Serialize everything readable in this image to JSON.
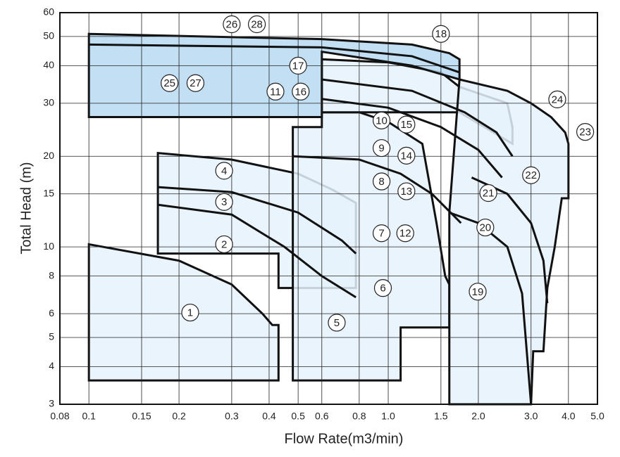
{
  "chart_data": {
    "type": "selection-chart",
    "x_label": "Flow Rate(m3/min)",
    "y_label": "Total Head (m)",
    "log_x": true,
    "log_y": true,
    "grid": true,
    "xlim": [
      0.08,
      5
    ],
    "ylim": [
      3,
      60
    ],
    "xticks": [
      0.08,
      0.1,
      0.15,
      0.2,
      0.3,
      0.4,
      0.5,
      0.6,
      0.8,
      {
        "value": 1,
        "label": "1.0"
      },
      1.5,
      {
        "value": 2,
        "label": "2.0"
      },
      {
        "value": 3,
        "label": "3.0"
      },
      {
        "value": 4,
        "label": "4.0"
      },
      {
        "value": 5,
        "label": "5.0"
      }
    ],
    "yticks": [
      3,
      4,
      5,
      6,
      8,
      10,
      15,
      20,
      30,
      40,
      50,
      60
    ],
    "regions": [
      {
        "color": "#e6f2fb",
        "x": [
          0.1,
          0.1,
          0.2,
          0.3,
          0.38,
          0.41,
          0.43,
          0.43
        ],
        "y": [
          3.6,
          10.2,
          9,
          7.5,
          6,
          5.5,
          5.5,
          3.6
        ]
      },
      {
        "color": "#e6f2fb",
        "x": [
          0.17,
          0.17,
          0.3,
          0.5,
          0.65,
          0.78,
          0.78,
          0.43,
          0.43,
          0.17
        ],
        "y": [
          9.5,
          20.5,
          19.5,
          17.5,
          15.5,
          14,
          7.3,
          7.3,
          9.5,
          9.5
        ]
      },
      {
        "color": "#e6f2fb",
        "x": [
          0.48,
          0.48,
          0.6,
          0.6,
          0.8,
          1,
          1.3,
          1.45,
          1.55,
          1.6,
          1.6,
          1.1,
          1.1
        ],
        "y": [
          3.6,
          25,
          25,
          28,
          28,
          26,
          22,
          12,
          8,
          7.5,
          5.4,
          5.4,
          3.6
        ]
      },
      {
        "color": "#e6f2fb",
        "x": [
          0.6,
          0.6,
          1,
          1.5,
          1.73,
          2.5,
          2.6,
          2.6,
          1.73
        ],
        "y": [
          28,
          42,
          41,
          38,
          34,
          30,
          25,
          22,
          28
        ]
      },
      {
        "color": "#e6f2fb",
        "x": [
          1.6,
          1.6,
          1.73,
          2.5,
          3,
          3.5,
          3.9,
          4,
          4,
          3.8,
          3.6,
          3.4,
          3.3,
          3.05,
          3
        ],
        "y": [
          3,
          13,
          36,
          33,
          30,
          27,
          24,
          22,
          14.5,
          14.5,
          10,
          7.3,
          4.5,
          4.5,
          3
        ]
      },
      {
        "color": "#b9d9f2",
        "x": [
          0.1,
          0.1,
          0.6,
          1.2,
          1.6,
          1.73,
          1.73,
          1.2,
          0.6,
          0.6
        ],
        "y": [
          27,
          51,
          49,
          47,
          44,
          42,
          36,
          40,
          44.5,
          27
        ]
      }
    ],
    "curves": [
      {
        "color": "#111111",
        "x": [
          0.17,
          0.3,
          0.5,
          0.7,
          0.78
        ],
        "y": [
          15.8,
          15.2,
          13,
          10.5,
          9.5
        ]
      },
      {
        "color": "#111111",
        "x": [
          0.17,
          0.3,
          0.45,
          0.6,
          0.78
        ],
        "y": [
          13.8,
          12.8,
          10,
          8,
          6.8
        ]
      },
      {
        "color": "#111111",
        "x": [
          0.48,
          0.8,
          1.1,
          1.4,
          1.75
        ],
        "y": [
          20,
          19.5,
          17.5,
          15,
          12
        ]
      },
      {
        "color": "#111111",
        "x": [
          0.6,
          1,
          1.5,
          2,
          2.4
        ],
        "y": [
          31,
          29,
          25,
          21,
          17
        ]
      },
      {
        "color": "#111111",
        "x": [
          0.6,
          1.2,
          1.8,
          2.3,
          2.6
        ],
        "y": [
          36,
          33,
          28,
          24,
          20
        ]
      },
      {
        "color": "#111111",
        "x": [
          1.6,
          2,
          2.5,
          2.8,
          3
        ],
        "y": [
          13,
          12,
          10,
          7,
          3
        ]
      },
      {
        "color": "#111111",
        "x": [
          1.9,
          2.5,
          3,
          3.3,
          3.4
        ],
        "y": [
          17,
          15,
          12,
          9,
          6.5
        ]
      },
      {
        "color": "#111111",
        "x": [
          0.1,
          0.6,
          1.2,
          1.73
        ],
        "y": [
          47,
          46,
          43,
          38
        ]
      }
    ],
    "labels": [
      {
        "text": "1",
        "x": 0.218,
        "y": 6.05
      },
      {
        "text": "2",
        "x": 0.283,
        "y": 10.2
      },
      {
        "text": "3",
        "x": 0.283,
        "y": 14.1
      },
      {
        "text": "4",
        "x": 0.283,
        "y": 17.9
      },
      {
        "text": "5",
        "x": 0.673,
        "y": 5.6
      },
      {
        "text": "6",
        "x": 0.96,
        "y": 7.3
      },
      {
        "text": "7",
        "x": 0.95,
        "y": 11.1
      },
      {
        "text": "12",
        "x": 1.14,
        "y": 11.1
      },
      {
        "text": "8",
        "x": 0.95,
        "y": 16.5
      },
      {
        "text": "13",
        "x": 1.15,
        "y": 15.3
      },
      {
        "text": "9",
        "x": 0.95,
        "y": 21.3
      },
      {
        "text": "14",
        "x": 1.15,
        "y": 20.1
      },
      {
        "text": "10",
        "x": 0.95,
        "y": 26.3
      },
      {
        "text": "15",
        "x": 1.15,
        "y": 25.5
      },
      {
        "text": "11",
        "x": 0.42,
        "y": 32.8
      },
      {
        "text": "16",
        "x": 0.51,
        "y": 32.8
      },
      {
        "text": "17",
        "x": 0.5,
        "y": 40
      },
      {
        "text": "18",
        "x": 1.5,
        "y": 51
      },
      {
        "text": "25",
        "x": 0.186,
        "y": 35
      },
      {
        "text": "27",
        "x": 0.227,
        "y": 35
      },
      {
        "text": "26",
        "x": 0.3,
        "y": 54.9
      },
      {
        "text": "28",
        "x": 0.364,
        "y": 54.9
      },
      {
        "text": "19",
        "x": 1.99,
        "y": 7.1
      },
      {
        "text": "20",
        "x": 2.11,
        "y": 11.6
      },
      {
        "text": "21",
        "x": 2.16,
        "y": 15.1
      },
      {
        "text": "22",
        "x": 3,
        "y": 17.3
      },
      {
        "text": "23",
        "x": 4.55,
        "y": 24.1
      },
      {
        "text": "24",
        "x": 3.67,
        "y": 30.9
      }
    ]
  }
}
